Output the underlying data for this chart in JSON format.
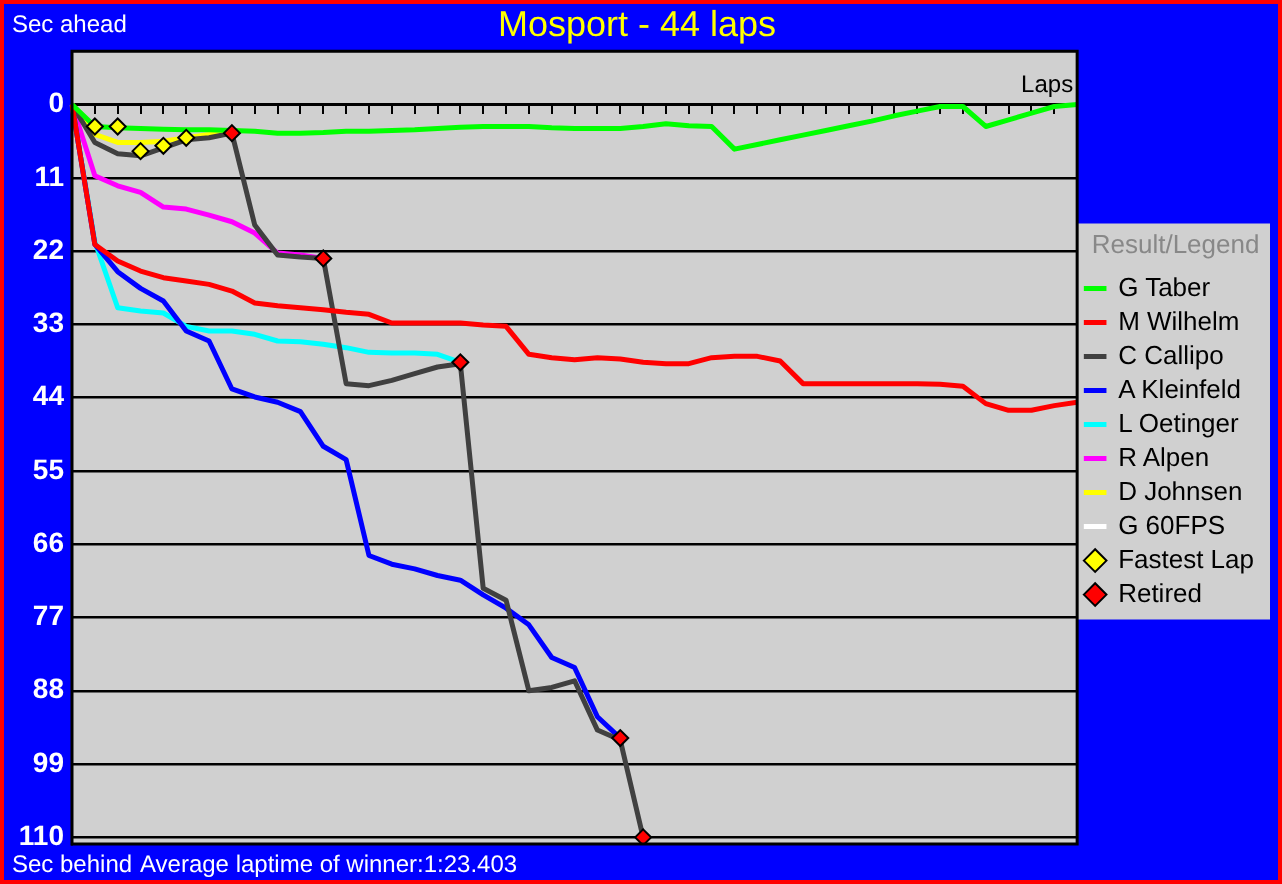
{
  "chart_data": {
    "type": "line",
    "title": "Mosport - 44 laps",
    "xlabel": "Laps",
    "ylabel": "Sec behind",
    "legend_title": "Result/Legend",
    "annotations": [
      "Sec ahead",
      "Average laptime of winner:1:23.403"
    ],
    "categories": [
      null,
      null,
      null,
      null,
      null,
      null,
      null,
      null,
      null,
      null,
      null,
      null,
      null,
      null,
      null,
      null,
      null,
      null,
      null,
      null,
      null,
      null,
      null,
      null,
      null,
      null,
      null,
      null,
      null,
      null,
      null,
      null,
      null,
      null,
      null,
      null,
      null,
      null,
      null,
      null,
      null,
      null,
      null,
      null,
      null
    ],
    "ylim": [
      111,
      -8
    ],
    "yticks": [
      0,
      11,
      22,
      33,
      44,
      55,
      66,
      77,
      88,
      99,
      110
    ],
    "grid": "y",
    "legend": "right",
    "marker": "none",
    "line_style": "solid",
    "series": [
      {
        "name": "G Taber",
        "color": "#00ff00",
        "values": [
          0,
          3.3,
          3.5,
          3.6,
          3.7,
          3.8,
          3.8,
          3.9,
          4,
          4.3,
          4.3,
          4.2,
          4,
          4,
          3.9,
          3.8,
          3.6,
          3.4,
          3.3,
          3.3,
          3.3,
          3.5,
          3.6,
          3.6,
          3.6,
          3.3,
          2.9,
          3.2,
          3.3,
          6.7,
          6,
          5.3,
          4.6,
          3.9,
          3.2,
          2.5,
          1.7,
          1,
          0.3,
          0.3,
          3.3,
          2.3,
          1.3,
          0.3,
          0
        ]
      },
      {
        "name": "M Wilhelm",
        "color": "#ff0000",
        "values": [
          0,
          21,
          23.5,
          25,
          26,
          26.5,
          27,
          28,
          29.8,
          30.2,
          30.5,
          30.8,
          31.2,
          31.5,
          32.8,
          32.8,
          32.8,
          32.8,
          33.1,
          33.3,
          37.5,
          38,
          38.3,
          38,
          38.2,
          38.7,
          38.9,
          38.9,
          38,
          37.8,
          37.8,
          38.5,
          41.9,
          41.9,
          41.9,
          41.9,
          41.9,
          41.9,
          42,
          42.3,
          44.9,
          45.9,
          45.9,
          45.2,
          44.7
        ]
      },
      {
        "name": "C Callipo",
        "color": "#404040",
        "values": [
          0,
          5.7,
          7.4,
          7.7,
          6.5,
          5.3,
          5,
          4.3,
          18.1,
          22.6,
          22.9,
          23.1,
          41.9,
          42.2,
          41.4,
          40.4,
          39.4,
          38.9,
          72.6,
          74.4,
          88,
          87.5,
          86.5,
          93.9,
          95.4,
          110,
          null,
          null,
          null,
          null,
          null,
          null,
          null,
          null,
          null,
          null,
          null,
          null,
          null,
          null,
          null,
          null,
          null,
          null,
          null
        ]
      },
      {
        "name": "A Kleinfeld",
        "color": "#0000ff",
        "values": [
          0,
          21,
          25.1,
          27.6,
          29.5,
          34,
          35.5,
          42.7,
          43.9,
          44.7,
          46.1,
          51.3,
          53.3,
          67.7,
          69,
          69.7,
          70.7,
          71.4,
          73.6,
          75.6,
          78.1,
          83,
          84.5,
          91.9,
          95.1,
          null,
          null,
          null,
          null,
          null,
          null,
          null,
          null,
          null,
          null,
          null,
          null,
          null,
          null,
          null,
          null,
          null,
          null,
          null,
          null
        ]
      },
      {
        "name": "L Oetinger",
        "color": "#00ffff",
        "values": [
          0,
          20.6,
          30.5,
          31,
          31.3,
          33.3,
          34,
          34,
          34.5,
          35.5,
          35.6,
          36,
          36.5,
          37.2,
          37.3,
          37.3,
          37.5,
          38.7,
          null,
          null,
          null,
          null,
          null,
          null,
          null,
          null,
          null,
          null,
          null,
          null,
          null,
          null,
          null,
          null,
          null,
          null,
          null,
          null,
          null,
          null,
          null,
          null,
          null,
          null,
          null
        ]
      },
      {
        "name": "R Alpen",
        "color": "#ff00ff",
        "values": [
          0,
          10.7,
          12.2,
          13.2,
          15.4,
          15.7,
          16.6,
          17.6,
          19.3,
          22.3,
          22.6,
          23.1,
          null,
          null,
          null,
          null,
          null,
          null,
          null,
          null,
          null,
          null,
          null,
          null,
          null,
          null,
          null,
          null,
          null,
          null,
          null,
          null,
          null,
          null,
          null,
          null,
          null,
          null,
          null,
          null,
          null,
          null,
          null,
          null,
          null
        ]
      },
      {
        "name": "D Johnsen",
        "color": "#ffff00",
        "values": [
          0,
          4.5,
          5.7,
          5.7,
          5.5,
          5,
          4.5,
          4.3,
          null,
          null,
          null,
          null,
          null,
          null,
          null,
          null,
          null,
          null,
          null,
          null,
          null,
          null,
          null,
          null,
          null,
          null,
          null,
          null,
          null,
          null,
          null,
          null,
          null,
          null,
          null,
          null,
          null,
          null,
          null,
          null,
          null,
          null,
          null,
          null,
          null
        ]
      },
      {
        "name": "G 60FPS",
        "color": "#ffffff",
        "values": [
          null,
          null,
          null,
          null,
          null,
          null,
          null,
          null,
          null,
          null,
          null,
          null,
          null,
          null,
          null,
          null,
          null,
          null,
          null,
          null,
          null,
          null,
          null,
          null,
          null,
          null,
          null,
          null,
          null,
          null,
          null,
          null,
          null,
          null,
          null,
          null,
          null,
          null,
          null,
          null,
          null,
          null,
          null,
          null,
          null
        ]
      },
      {
        "name": "Fastest Lap",
        "type": "scatter",
        "marker": "diamond",
        "color": "#ffff00",
        "values": [
          null,
          3.3,
          3.3,
          7,
          6.2,
          5,
          null,
          null,
          null,
          null,
          null,
          null,
          null,
          null,
          null,
          null,
          null,
          null,
          null,
          null,
          null,
          null,
          null,
          null,
          null,
          null,
          null,
          null,
          null,
          null,
          null,
          null,
          null,
          null,
          null,
          null,
          null,
          null,
          null,
          null,
          null,
          null,
          null,
          null,
          null
        ]
      },
      {
        "name": "Retired",
        "type": "scatter",
        "marker": "diamond",
        "color": "#ff0000",
        "values": [
          null,
          null,
          null,
          null,
          null,
          null,
          null,
          4.3,
          null,
          null,
          null,
          23.1,
          null,
          null,
          null,
          null,
          null,
          38.7,
          null,
          null,
          null,
          null,
          null,
          null,
          95.1,
          110,
          null,
          null,
          null,
          null,
          null,
          null,
          null,
          null,
          null,
          null,
          null,
          null,
          null,
          null,
          null,
          null,
          null,
          null,
          null
        ]
      }
    ]
  }
}
